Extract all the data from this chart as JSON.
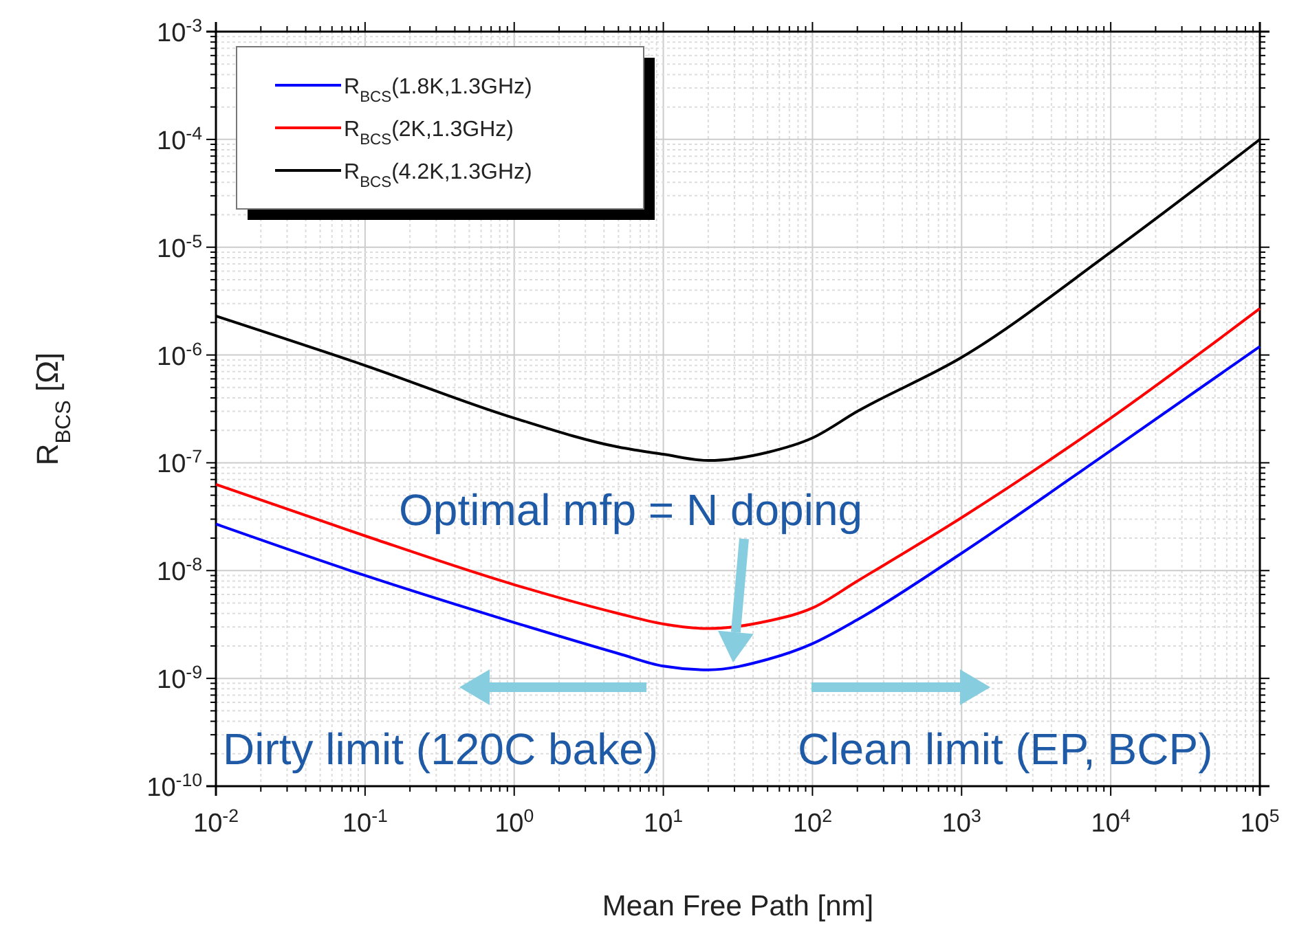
{
  "chart_data": {
    "type": "line",
    "xlabel": "Mean Free Path [nm]",
    "ylabel": "R$_{BCS}$ [Ω]",
    "log": "xy",
    "grid": true,
    "legend": "top left",
    "line_style": "solid",
    "marker": "none",
    "xlim": [
      0.01,
      100000
    ],
    "ylim": [
      1e-10,
      0.001
    ],
    "xticks": [
      {
        "value": 0.01,
        "label": "10$^{-2}$"
      },
      {
        "value": 0.1,
        "label": "10$^{-1}$"
      },
      {
        "value": 1,
        "label": "10$^{0}$"
      },
      {
        "value": 10,
        "label": "10$^{1}$"
      },
      {
        "value": 100,
        "label": "10$^{2}$"
      },
      {
        "value": 1000,
        "label": "10$^{3}$"
      },
      {
        "value": 10000,
        "label": "10$^{4}$"
      },
      {
        "value": 100000,
        "label": "10$^{5}$"
      }
    ],
    "yticks": [
      {
        "value": 1e-10,
        "label": "10$^{-10}$"
      },
      {
        "value": 1e-09,
        "label": "10$^{-9}$"
      },
      {
        "value": 1e-08,
        "label": "10$^{-8}$"
      },
      {
        "value": 1e-07,
        "label": "10$^{-7}$"
      },
      {
        "value": 1e-06,
        "label": "10$^{-6}$"
      },
      {
        "value": 1e-05,
        "label": "10$^{-5}$"
      },
      {
        "value": 0.0001,
        "label": "10$^{-4}$"
      },
      {
        "value": 0.001,
        "label": "10$^{-3}$"
      }
    ],
    "x": [
      0.01,
      0.1,
      1,
      5,
      10,
      20,
      50,
      100,
      200,
      1000,
      10000,
      100000
    ],
    "series": [
      {
        "name": "R$_{BCS}$(1.8K,1.3GHz)",
        "color": "#0000ff",
        "values": [
          2.7e-08,
          9e-09,
          3.3e-09,
          1.7e-09,
          1.3e-09,
          1.2e-09,
          1.5e-09,
          2.1e-09,
          3.5e-09,
          1.45e-08,
          1.3e-07,
          1.2e-06
        ]
      },
      {
        "name": "R$_{BCS}$(2K,1.3GHz)",
        "color": "#ff0000",
        "values": [
          6.3e-08,
          2.1e-08,
          7.4e-09,
          4e-09,
          3.2e-09,
          2.9e-09,
          3.4e-09,
          4.5e-09,
          8e-09,
          3.1e-08,
          2.6e-07,
          2.7e-06
        ]
      },
      {
        "name": "R$_{BCS}$(4.2K,1.3GHz)",
        "color": "#000000",
        "values": [
          2.3e-06,
          8e-07,
          2.6e-07,
          1.4e-07,
          1.2e-07,
          1.05e-07,
          1.25e-07,
          1.7e-07,
          3e-07,
          9.5e-07,
          9e-06,
          0.0001
        ]
      }
    ],
    "annotations": [
      "Optimal mfp = N doping",
      "Dirty limit (120C bake)",
      "Clean limit (EP, BCP)"
    ]
  }
}
